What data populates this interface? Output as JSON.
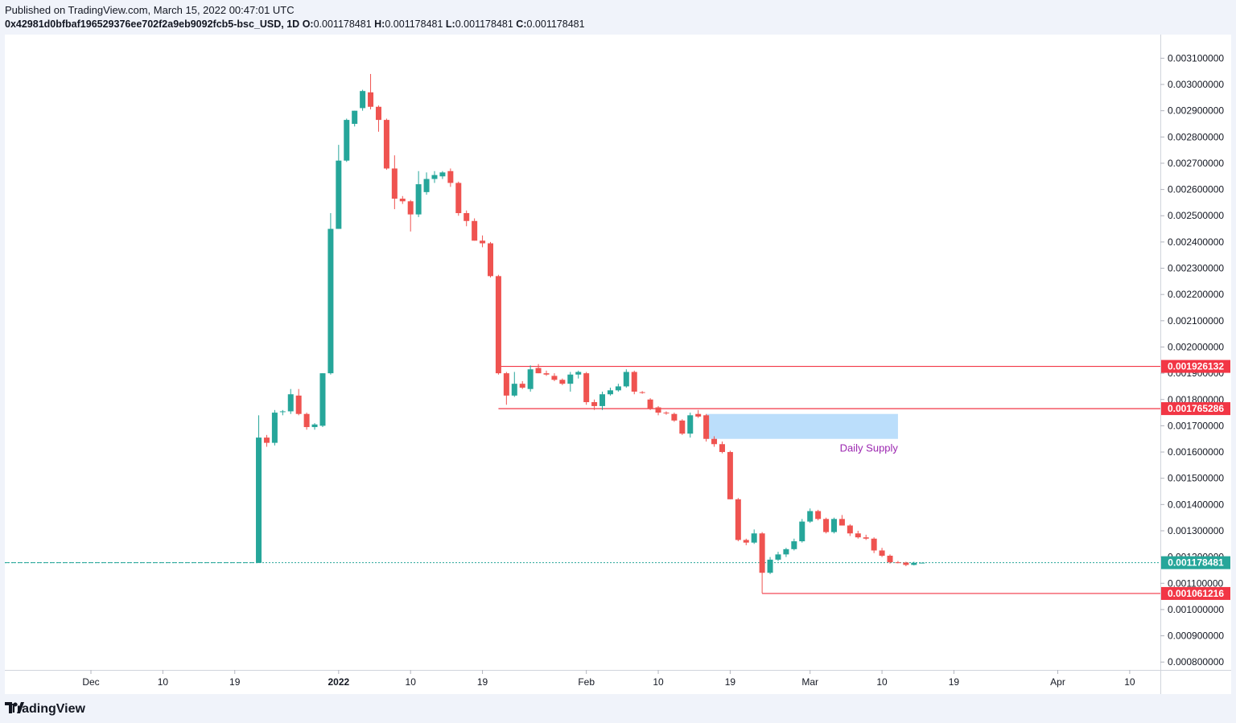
{
  "header": {
    "published": "Published on TradingView.com, March 15, 2022 00:47:01 UTC",
    "symbol": "0x42981d0bfbaf196529376ee702f2a9eb9092fcb5-bsc_USD, 1D",
    "o_label": "O:",
    "o_value": "0.001178481",
    "h_label": "H:",
    "h_value": "0.001178481",
    "l_label": "L:",
    "l_value": "0.001178481",
    "c_label": "C:",
    "c_value": "0.001178481"
  },
  "footer": {
    "brand": "TradingView"
  },
  "colors": {
    "up": "#26a69a",
    "down": "#ef5350",
    "level": "#f23645",
    "supply": "#bbdefb",
    "supply_text": "#9c27b0",
    "last_price": "#26a69a"
  },
  "chart_data": {
    "type": "candlestick",
    "ylim": [
      0.00077,
      0.00319
    ],
    "y_ticks": [
      "0.003100000",
      "0.003000000",
      "0.002900000",
      "0.002800000",
      "0.002700000",
      "0.002600000",
      "0.002500000",
      "0.002400000",
      "0.002300000",
      "0.002200000",
      "0.002100000",
      "0.002000000",
      "0.001900000",
      "0.001800000",
      "0.001700000",
      "0.001600000",
      "0.001500000",
      "0.001400000",
      "0.001300000",
      "0.001200000",
      "0.001100000",
      "0.001000000",
      "0.000900000",
      "0.000800000"
    ],
    "x_ticks": [
      {
        "label": "Dec",
        "date": "2021-12-01"
      },
      {
        "label": "10",
        "date": "2021-12-10"
      },
      {
        "label": "19",
        "date": "2021-12-19"
      },
      {
        "label": "2022",
        "date": "2022-01-01",
        "bold": true
      },
      {
        "label": "10",
        "date": "2022-01-10"
      },
      {
        "label": "19",
        "date": "2022-01-19"
      },
      {
        "label": "Feb",
        "date": "2022-02-01"
      },
      {
        "label": "10",
        "date": "2022-02-10"
      },
      {
        "label": "19",
        "date": "2022-02-19"
      },
      {
        "label": "Mar",
        "date": "2022-03-01"
      },
      {
        "label": "10",
        "date": "2022-03-10"
      },
      {
        "label": "19",
        "date": "2022-03-19"
      },
      {
        "label": "Apr",
        "date": "2022-04-01"
      },
      {
        "label": "10",
        "date": "2022-04-10"
      }
    ],
    "candles": [
      {
        "date": "2021-12-22",
        "o": 0.001178,
        "h": 0.00174,
        "l": 0.001178,
        "c": 0.001655
      },
      {
        "date": "2021-12-23",
        "o": 0.001655,
        "h": 0.001665,
        "l": 0.00162,
        "c": 0.001635
      },
      {
        "date": "2021-12-24",
        "o": 0.001635,
        "h": 0.00176,
        "l": 0.001625,
        "c": 0.00175
      },
      {
        "date": "2021-12-25",
        "o": 0.001752,
        "h": 0.00176,
        "l": 0.00174,
        "c": 0.001755
      },
      {
        "date": "2021-12-26",
        "o": 0.001755,
        "h": 0.00184,
        "l": 0.001745,
        "c": 0.00182
      },
      {
        "date": "2021-12-27",
        "o": 0.001815,
        "h": 0.00184,
        "l": 0.00174,
        "c": 0.001745
      },
      {
        "date": "2021-12-28",
        "o": 0.001745,
        "h": 0.00175,
        "l": 0.001685,
        "c": 0.001695
      },
      {
        "date": "2021-12-29",
        "o": 0.001695,
        "h": 0.00171,
        "l": 0.001685,
        "c": 0.001705
      },
      {
        "date": "2021-12-30",
        "o": 0.0017,
        "h": 0.0019,
        "l": 0.001695,
        "c": 0.0019
      },
      {
        "date": "2021-12-31",
        "o": 0.0019,
        "h": 0.00251,
        "l": 0.001895,
        "c": 0.00245
      },
      {
        "date": "2022-01-01",
        "o": 0.00245,
        "h": 0.00277,
        "l": 0.00245,
        "c": 0.00271
      },
      {
        "date": "2022-01-02",
        "o": 0.00271,
        "h": 0.00287,
        "l": 0.002705,
        "c": 0.002865
      },
      {
        "date": "2022-01-03",
        "o": 0.00285,
        "h": 0.0029,
        "l": 0.00284,
        "c": 0.0029
      },
      {
        "date": "2022-01-04",
        "o": 0.00291,
        "h": 0.00298,
        "l": 0.0029,
        "c": 0.002975
      },
      {
        "date": "2022-01-05",
        "o": 0.00297,
        "h": 0.00304,
        "l": 0.002905,
        "c": 0.002915
      },
      {
        "date": "2022-01-06",
        "o": 0.002915,
        "h": 0.00292,
        "l": 0.00282,
        "c": 0.002865
      },
      {
        "date": "2022-01-07",
        "o": 0.002865,
        "h": 0.00287,
        "l": 0.002675,
        "c": 0.00268
      },
      {
        "date": "2022-01-08",
        "o": 0.00268,
        "h": 0.00273,
        "l": 0.002525,
        "c": 0.002565
      },
      {
        "date": "2022-01-09",
        "o": 0.002565,
        "h": 0.002575,
        "l": 0.002545,
        "c": 0.002555
      },
      {
        "date": "2022-01-10",
        "o": 0.002555,
        "h": 0.00256,
        "l": 0.00244,
        "c": 0.002505
      },
      {
        "date": "2022-01-11",
        "o": 0.002505,
        "h": 0.00267,
        "l": 0.002495,
        "c": 0.00262
      },
      {
        "date": "2022-01-12",
        "o": 0.00259,
        "h": 0.002665,
        "l": 0.00258,
        "c": 0.00264
      },
      {
        "date": "2022-01-13",
        "o": 0.00264,
        "h": 0.00267,
        "l": 0.002625,
        "c": 0.002655
      },
      {
        "date": "2022-01-14",
        "o": 0.00265,
        "h": 0.00267,
        "l": 0.00264,
        "c": 0.002665
      },
      {
        "date": "2022-01-15",
        "o": 0.00267,
        "h": 0.00268,
        "l": 0.00261,
        "c": 0.002625
      },
      {
        "date": "2022-01-16",
        "o": 0.002625,
        "h": 0.00263,
        "l": 0.0025,
        "c": 0.00251
      },
      {
        "date": "2022-01-17",
        "o": 0.00251,
        "h": 0.00252,
        "l": 0.00246,
        "c": 0.00248
      },
      {
        "date": "2022-01-18",
        "o": 0.00248,
        "h": 0.00249,
        "l": 0.002405,
        "c": 0.002405
      },
      {
        "date": "2022-01-19",
        "o": 0.002405,
        "h": 0.002425,
        "l": 0.00238,
        "c": 0.002395
      },
      {
        "date": "2022-01-20",
        "o": 0.002395,
        "h": 0.0024,
        "l": 0.002265,
        "c": 0.00227
      },
      {
        "date": "2022-01-21",
        "o": 0.00227,
        "h": 0.002275,
        "l": 0.001895,
        "c": 0.0019
      },
      {
        "date": "2022-01-22",
        "o": 0.0019,
        "h": 0.001905,
        "l": 0.00178,
        "c": 0.001815
      },
      {
        "date": "2022-01-23",
        "o": 0.001815,
        "h": 0.001905,
        "l": 0.00181,
        "c": 0.00186
      },
      {
        "date": "2022-01-24",
        "o": 0.00186,
        "h": 0.00187,
        "l": 0.00184,
        "c": 0.001845
      },
      {
        "date": "2022-01-25",
        "o": 0.00184,
        "h": 0.00193,
        "l": 0.00183,
        "c": 0.001915
      },
      {
        "date": "2022-01-26",
        "o": 0.00192,
        "h": 0.001935,
        "l": 0.0019,
        "c": 0.0019
      },
      {
        "date": "2022-01-27",
        "o": 0.0019,
        "h": 0.00191,
        "l": 0.00189,
        "c": 0.001895
      },
      {
        "date": "2022-01-28",
        "o": 0.00189,
        "h": 0.0019,
        "l": 0.00187,
        "c": 0.001875
      },
      {
        "date": "2022-01-29",
        "o": 0.001875,
        "h": 0.00188,
        "l": 0.001855,
        "c": 0.00186
      },
      {
        "date": "2022-01-30",
        "o": 0.00186,
        "h": 0.001905,
        "l": 0.00183,
        "c": 0.001895
      },
      {
        "date": "2022-01-31",
        "o": 0.001895,
        "h": 0.00191,
        "l": 0.00188,
        "c": 0.001905
      },
      {
        "date": "2022-02-01",
        "o": 0.0019,
        "h": 0.001905,
        "l": 0.00178,
        "c": 0.00179
      },
      {
        "date": "2022-02-02",
        "o": 0.00179,
        "h": 0.0018,
        "l": 0.00176,
        "c": 0.001775
      },
      {
        "date": "2022-02-03",
        "o": 0.001775,
        "h": 0.00183,
        "l": 0.00176,
        "c": 0.00182
      },
      {
        "date": "2022-02-04",
        "o": 0.00182,
        "h": 0.001845,
        "l": 0.001815,
        "c": 0.001835
      },
      {
        "date": "2022-02-05",
        "o": 0.001835,
        "h": 0.00186,
        "l": 0.00183,
        "c": 0.00185
      },
      {
        "date": "2022-02-06",
        "o": 0.00185,
        "h": 0.001915,
        "l": 0.001845,
        "c": 0.001905
      },
      {
        "date": "2022-02-07",
        "o": 0.001905,
        "h": 0.00191,
        "l": 0.00182,
        "c": 0.00183
      },
      {
        "date": "2022-02-08",
        "o": 0.001828,
        "h": 0.001832,
        "l": 0.001822,
        "c": 0.001826
      },
      {
        "date": "2022-02-09",
        "o": 0.0018,
        "h": 0.001805,
        "l": 0.00176,
        "c": 0.001765
      },
      {
        "date": "2022-02-10",
        "o": 0.00177,
        "h": 0.001775,
        "l": 0.00174,
        "c": 0.00175
      },
      {
        "date": "2022-02-11",
        "o": 0.00175,
        "h": 0.001755,
        "l": 0.001742,
        "c": 0.001748
      },
      {
        "date": "2022-02-12",
        "o": 0.001745,
        "h": 0.00175,
        "l": 0.001715,
        "c": 0.00172
      },
      {
        "date": "2022-02-13",
        "o": 0.00172,
        "h": 0.001725,
        "l": 0.001665,
        "c": 0.00167
      },
      {
        "date": "2022-02-14",
        "o": 0.00167,
        "h": 0.00175,
        "l": 0.001655,
        "c": 0.00174
      },
      {
        "date": "2022-02-15",
        "o": 0.001745,
        "h": 0.00176,
        "l": 0.00173,
        "c": 0.001735
      },
      {
        "date": "2022-02-16",
        "o": 0.00174,
        "h": 0.001745,
        "l": 0.00164,
        "c": 0.00165
      },
      {
        "date": "2022-02-17",
        "o": 0.00165,
        "h": 0.00166,
        "l": 0.00162,
        "c": 0.00163
      },
      {
        "date": "2022-02-18",
        "o": 0.00163,
        "h": 0.00164,
        "l": 0.001595,
        "c": 0.0016
      },
      {
        "date": "2022-02-19",
        "o": 0.0016,
        "h": 0.001605,
        "l": 0.00142,
        "c": 0.00142
      },
      {
        "date": "2022-02-20",
        "o": 0.00142,
        "h": 0.001425,
        "l": 0.00126,
        "c": 0.001265
      },
      {
        "date": "2022-02-21",
        "o": 0.001265,
        "h": 0.00127,
        "l": 0.001245,
        "c": 0.001255
      },
      {
        "date": "2022-02-22",
        "o": 0.001255,
        "h": 0.001305,
        "l": 0.00125,
        "c": 0.00129
      },
      {
        "date": "2022-02-23",
        "o": 0.00129,
        "h": 0.001295,
        "l": 0.001062,
        "c": 0.00114
      },
      {
        "date": "2022-02-24",
        "o": 0.00114,
        "h": 0.0012,
        "l": 0.001135,
        "c": 0.00119
      },
      {
        "date": "2022-02-25",
        "o": 0.00119,
        "h": 0.00122,
        "l": 0.001185,
        "c": 0.00121
      },
      {
        "date": "2022-02-26",
        "o": 0.00121,
        "h": 0.001235,
        "l": 0.0012,
        "c": 0.00123
      },
      {
        "date": "2022-02-27",
        "o": 0.00123,
        "h": 0.00127,
        "l": 0.001225,
        "c": 0.00126
      },
      {
        "date": "2022-02-28",
        "o": 0.00126,
        "h": 0.001345,
        "l": 0.001255,
        "c": 0.001335
      },
      {
        "date": "2022-03-01",
        "o": 0.001335,
        "h": 0.001385,
        "l": 0.00133,
        "c": 0.001375
      },
      {
        "date": "2022-03-02",
        "o": 0.001375,
        "h": 0.00138,
        "l": 0.00134,
        "c": 0.001345
      },
      {
        "date": "2022-03-03",
        "o": 0.001345,
        "h": 0.00135,
        "l": 0.00129,
        "c": 0.001295
      },
      {
        "date": "2022-03-04",
        "o": 0.001295,
        "h": 0.00135,
        "l": 0.00129,
        "c": 0.001345
      },
      {
        "date": "2022-03-05",
        "o": 0.001345,
        "h": 0.00136,
        "l": 0.00132,
        "c": 0.00132
      },
      {
        "date": "2022-03-06",
        "o": 0.00132,
        "h": 0.001325,
        "l": 0.00128,
        "c": 0.00129
      },
      {
        "date": "2022-03-07",
        "o": 0.00129,
        "h": 0.0013,
        "l": 0.00127,
        "c": 0.001275
      },
      {
        "date": "2022-03-08",
        "o": 0.001275,
        "h": 0.001285,
        "l": 0.001265,
        "c": 0.00127
      },
      {
        "date": "2022-03-09",
        "o": 0.00127,
        "h": 0.001275,
        "l": 0.001215,
        "c": 0.001225
      },
      {
        "date": "2022-03-10",
        "o": 0.001225,
        "h": 0.001235,
        "l": 0.0012,
        "c": 0.001205
      },
      {
        "date": "2022-03-11",
        "o": 0.001205,
        "h": 0.00121,
        "l": 0.001175,
        "c": 0.00118
      },
      {
        "date": "2022-03-12",
        "o": 0.00118,
        "h": 0.001185,
        "l": 0.001176,
        "c": 0.001179
      },
      {
        "date": "2022-03-13",
        "o": 0.001179,
        "h": 0.001182,
        "l": 0.001165,
        "c": 0.00117
      },
      {
        "date": "2022-03-14",
        "o": 0.00117,
        "h": 0.001182,
        "l": 0.001168,
        "c": 0.001178
      },
      {
        "date": "2022-03-15",
        "o": 0.001178481,
        "h": 0.001178481,
        "l": 0.001178481,
        "c": 0.001178481
      }
    ],
    "horizontal_levels": [
      {
        "value": 0.00192613,
        "label": "0.001926132",
        "from_date": "2022-01-21"
      },
      {
        "value": 0.00176529,
        "label": "0.001765286",
        "from_date": "2022-01-21"
      },
      {
        "value": 0.00106121,
        "label": "0.001061216",
        "from_date": "2022-02-23"
      }
    ],
    "last_price": {
      "value": 0.001178481,
      "label": "0.001178481",
      "from_date": "2021-11-12"
    },
    "zone": {
      "label": "Daily Supply",
      "y_top": 0.001745,
      "y_bottom": 0.00165,
      "from_date": "2022-02-16",
      "to_date": "2022-03-12"
    }
  }
}
